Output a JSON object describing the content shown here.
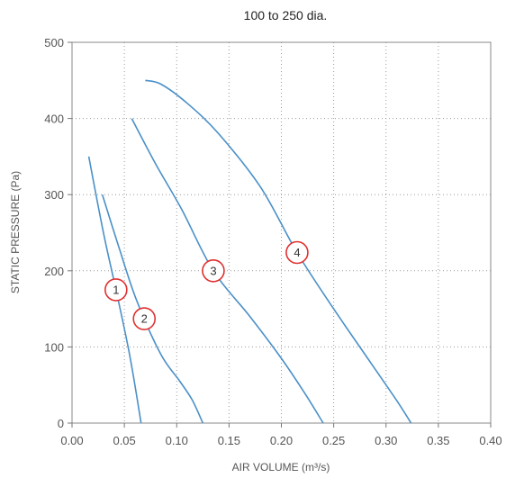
{
  "chart_data": {
    "type": "line",
    "title": "100 to 250 dia.",
    "xlabel": "AIR VOLUME (m³/s)",
    "ylabel": "STATIC PRESSURE (Pa)",
    "xlim": [
      0,
      0.4
    ],
    "ylim": [
      0,
      500
    ],
    "x_ticks": [
      0,
      0.05,
      0.1,
      0.15,
      0.2,
      0.25,
      0.3,
      0.35,
      0.4
    ],
    "x_tick_labels": [
      "0.00",
      "0.05",
      "0.10",
      "0.15",
      "0.20",
      "0.25",
      "0.30",
      "0.35",
      "0.40"
    ],
    "y_ticks": [
      0,
      100,
      200,
      300,
      400,
      500
    ],
    "y_tick_labels": [
      "0",
      "100",
      "200",
      "300",
      "400",
      "500"
    ],
    "grid": true,
    "grid_style": "dotted",
    "line_color": "#4a90c8",
    "marker_color": "#e03030",
    "series": [
      {
        "label": "1",
        "label_at": [
          0.042,
          175
        ],
        "points": [
          [
            0.016,
            350
          ],
          [
            0.03,
            250
          ],
          [
            0.042,
            175
          ],
          [
            0.055,
            90
          ],
          [
            0.066,
            0
          ]
        ]
      },
      {
        "label": "2",
        "label_at": [
          0.069,
          137
        ],
        "points": [
          [
            0.029,
            300
          ],
          [
            0.045,
            230
          ],
          [
            0.062,
            160
          ],
          [
            0.085,
            90
          ],
          [
            0.103,
            55
          ],
          [
            0.115,
            30
          ],
          [
            0.125,
            0
          ]
        ]
      },
      {
        "label": "3",
        "label_at": [
          0.135,
          200
        ],
        "points": [
          [
            0.057,
            400
          ],
          [
            0.08,
            340
          ],
          [
            0.105,
            280
          ],
          [
            0.135,
            200
          ],
          [
            0.17,
            140
          ],
          [
            0.2,
            85
          ],
          [
            0.222,
            40
          ],
          [
            0.24,
            0
          ]
        ]
      },
      {
        "label": "4",
        "label_at": [
          0.215,
          224
        ],
        "points": [
          [
            0.07,
            450
          ],
          [
            0.085,
            445
          ],
          [
            0.11,
            420
          ],
          [
            0.14,
            380
          ],
          [
            0.18,
            310
          ],
          [
            0.215,
            224
          ],
          [
            0.25,
            150
          ],
          [
            0.285,
            80
          ],
          [
            0.31,
            30
          ],
          [
            0.324,
            0
          ]
        ]
      }
    ]
  }
}
